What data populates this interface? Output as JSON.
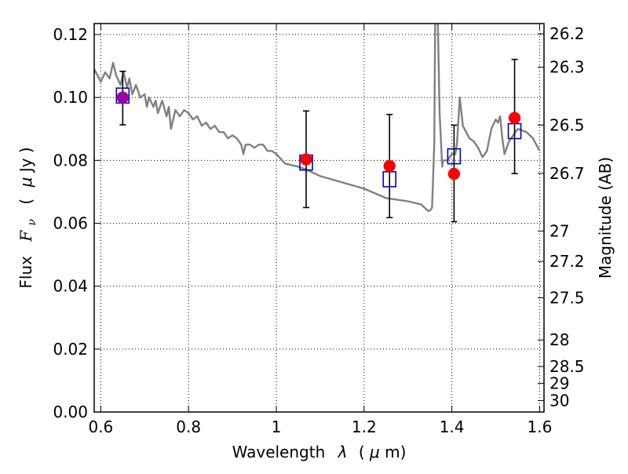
{
  "chart_data": {
    "type": "scatter",
    "title": "",
    "xlabel": "Wavelength",
    "xlabel_symbol": "λ",
    "xlabel_unit_prefix": "(",
    "xlabel_unit_mu": "μ",
    "xlabel_unit_rest": "m)",
    "ylabel": "Flux",
    "ylabel_symbol_main": "F",
    "ylabel_symbol_sub": "ν",
    "ylabel_unit_prefix": "(",
    "ylabel_unit_mu": "μ",
    "ylabel_unit_rest": "Jy )",
    "ylabel_right": "Magnitude (AB)",
    "xlim": [
      0.585,
      1.61
    ],
    "ylim": [
      0.0,
      0.1235
    ],
    "grid": true,
    "x_ticks": [
      {
        "value": 0.6,
        "label": "0.6"
      },
      {
        "value": 0.8,
        "label": "0.8"
      },
      {
        "value": 1.0,
        "label": "1"
      },
      {
        "value": 1.2,
        "label": "1.2"
      },
      {
        "value": 1.4,
        "label": "1.4"
      },
      {
        "value": 1.6,
        "label": "1.6"
      }
    ],
    "y_ticks": [
      {
        "value": 0.0,
        "label": "0.00"
      },
      {
        "value": 0.02,
        "label": "0.02"
      },
      {
        "value": 0.04,
        "label": "0.04"
      },
      {
        "value": 0.06,
        "label": "0.06"
      },
      {
        "value": 0.08,
        "label": "0.08"
      },
      {
        "value": 0.1,
        "label": "0.10"
      },
      {
        "value": 0.12,
        "label": "0.12"
      }
    ],
    "right_ticks": [
      {
        "mag": 26.2,
        "label": "26.2"
      },
      {
        "mag": 26.3,
        "label": "26.3"
      },
      {
        "mag": 26.5,
        "label": "26.5"
      },
      {
        "mag": 26.7,
        "label": "26.7"
      },
      {
        "mag": 27.0,
        "label": "27"
      },
      {
        "mag": 27.2,
        "label": "27.2"
      },
      {
        "mag": 27.5,
        "label": "27.5"
      },
      {
        "mag": 28.0,
        "label": "28"
      },
      {
        "mag": 28.5,
        "label": "28.5"
      },
      {
        "mag": 29.0,
        "label": "29"
      },
      {
        "mag": 30.0,
        "label": "30"
      }
    ],
    "colors": {
      "model": "#808080",
      "observed": "#ff0000",
      "model_band": "#0000cc",
      "overlap": "#a000a0",
      "errorbar": "#000000"
    },
    "model_spectrum": {
      "name": "",
      "x": [
        0.585,
        0.6,
        0.61,
        0.62,
        0.628,
        0.635,
        0.645,
        0.652,
        0.66,
        0.665,
        0.672,
        0.68,
        0.69,
        0.7,
        0.705,
        0.71,
        0.72,
        0.725,
        0.73,
        0.74,
        0.75,
        0.755,
        0.76,
        0.77,
        0.78,
        0.79,
        0.8,
        0.81,
        0.82,
        0.83,
        0.84,
        0.85,
        0.86,
        0.87,
        0.88,
        0.89,
        0.9,
        0.91,
        0.92,
        0.925,
        0.93,
        0.94,
        0.95,
        0.96,
        0.97,
        0.98,
        0.99,
        1.0,
        1.02,
        1.05,
        1.07,
        1.1,
        1.15,
        1.2,
        1.25,
        1.3,
        1.33,
        1.345,
        1.35,
        1.355,
        1.36,
        1.362,
        1.368,
        1.372,
        1.375,
        1.378,
        1.38,
        1.39,
        1.4,
        1.408,
        1.412,
        1.418,
        1.425,
        1.44,
        1.45,
        1.46,
        1.47,
        1.48,
        1.49,
        1.5,
        1.505,
        1.51,
        1.515,
        1.52,
        1.53,
        1.55,
        1.57,
        1.585,
        1.6
      ],
      "y": [
        0.109,
        0.105,
        0.108,
        0.106,
        0.111,
        0.107,
        0.104,
        0.108,
        0.103,
        0.106,
        0.101,
        0.104,
        0.1,
        0.101,
        0.097,
        0.1,
        0.097,
        0.099,
        0.095,
        0.099,
        0.094,
        0.097,
        0.09,
        0.096,
        0.094,
        0.096,
        0.095,
        0.093,
        0.094,
        0.091,
        0.092,
        0.09,
        0.091,
        0.089,
        0.089,
        0.087,
        0.088,
        0.087,
        0.085,
        0.082,
        0.085,
        0.085,
        0.084,
        0.085,
        0.085,
        0.083,
        0.083,
        0.082,
        0.079,
        0.078,
        0.077,
        0.075,
        0.073,
        0.071,
        0.068,
        0.067,
        0.066,
        0.064,
        0.064,
        0.065,
        0.085,
        0.125,
        0.125,
        0.095,
        0.087,
        0.078,
        0.08,
        0.08,
        0.082,
        0.082,
        0.086,
        0.1,
        0.091,
        0.087,
        0.086,
        0.084,
        0.081,
        0.083,
        0.09,
        0.093,
        0.092,
        0.094,
        0.087,
        0.082,
        0.086,
        0.09,
        0.089,
        0.087,
        0.083
      ]
    },
    "observed": {
      "name": "",
      "points": [
        {
          "x": 0.65,
          "y": 0.1,
          "yerr_low": 0.0913,
          "yerr_high": 0.1083
        },
        {
          "x": 1.068,
          "y": 0.0803,
          "yerr_low": 0.065,
          "yerr_high": 0.0957
        },
        {
          "x": 1.258,
          "y": 0.0782,
          "yerr_low": 0.0618,
          "yerr_high": 0.0946
        },
        {
          "x": 1.405,
          "y": 0.0757,
          "yerr_low": 0.0605,
          "yerr_high": 0.0912
        },
        {
          "x": 1.543,
          "y": 0.0935,
          "yerr_low": 0.0758,
          "yerr_high": 0.1121
        }
      ]
    },
    "model_band": {
      "name": "",
      "points": [
        {
          "x": 0.65,
          "y": 0.1006
        },
        {
          "x": 1.068,
          "y": 0.0793
        },
        {
          "x": 1.258,
          "y": 0.074
        },
        {
          "x": 1.405,
          "y": 0.0813
        },
        {
          "x": 1.543,
          "y": 0.0893
        }
      ]
    }
  }
}
